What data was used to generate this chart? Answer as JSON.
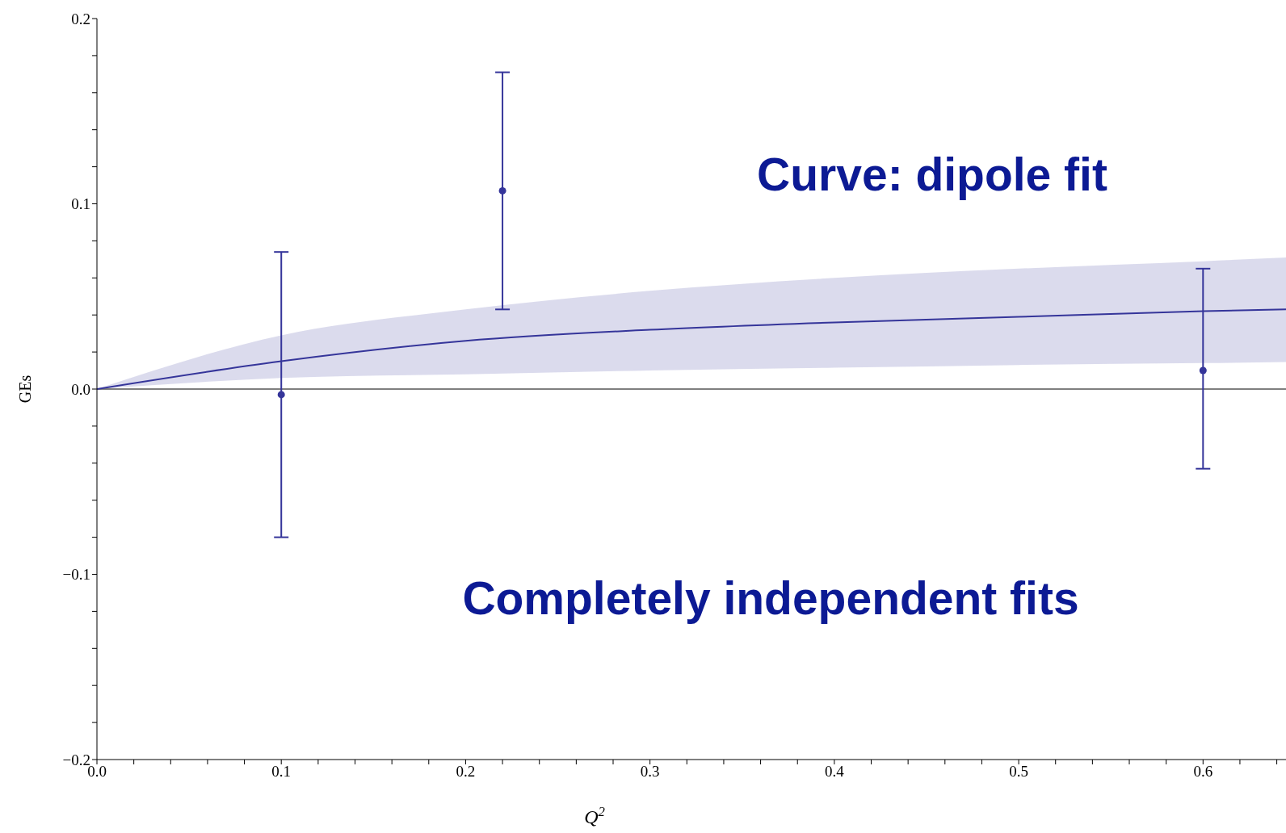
{
  "chart_data": {
    "type": "line",
    "xlabel": "Q$^{2}$",
    "ylabel": "GEs",
    "xlim": [
      0,
      0.645
    ],
    "xticks": [
      {
        "value": 0,
        "label": "0.0"
      },
      {
        "value": 0.02,
        "label": null
      },
      {
        "value": 0.04,
        "label": null
      },
      {
        "value": 0.06,
        "label": null
      },
      {
        "value": 0.08,
        "label": null
      },
      0.1,
      {
        "value": 0.12,
        "label": null
      },
      {
        "value": 0.14,
        "label": null
      },
      {
        "value": 0.16,
        "label": null
      },
      {
        "value": 0.18,
        "label": null
      },
      0.2,
      {
        "value": 0.22,
        "label": null
      },
      {
        "value": 0.24,
        "label": null
      },
      {
        "value": 0.26,
        "label": null
      },
      {
        "value": 0.28,
        "label": null
      },
      0.3,
      {
        "value": 0.32,
        "label": null
      },
      {
        "value": 0.34,
        "label": null
      },
      {
        "value": 0.36,
        "label": null
      },
      {
        "value": 0.38,
        "label": null
      },
      0.4,
      {
        "value": 0.42,
        "label": null
      },
      {
        "value": 0.44,
        "label": null
      },
      {
        "value": 0.46,
        "label": null
      },
      {
        "value": 0.48,
        "label": null
      },
      0.5,
      {
        "value": 0.52,
        "label": null
      },
      {
        "value": 0.54,
        "label": null
      },
      {
        "value": 0.56,
        "label": null
      },
      {
        "value": 0.58,
        "label": null
      },
      0.6,
      {
        "value": 0.62,
        "label": null
      },
      {
        "value": 0.64,
        "label": null
      }
    ],
    "ylim": [
      -0.2,
      0.2
    ],
    "yticks": [
      {
        "value": -0.2,
        "label": "−0.2"
      },
      {
        "value": -0.18,
        "label": null
      },
      {
        "value": -0.16,
        "label": null
      },
      {
        "value": -0.14,
        "label": null
      },
      {
        "value": -0.12,
        "label": null
      },
      {
        "value": -0.1,
        "label": "−0.1"
      },
      {
        "value": -0.08,
        "label": null
      },
      {
        "value": -0.06,
        "label": null
      },
      {
        "value": -0.04,
        "label": null
      },
      {
        "value": -0.02,
        "label": null
      },
      {
        "value": 0,
        "label": "0.0"
      },
      {
        "value": 0.02,
        "label": null
      },
      {
        "value": 0.04,
        "label": null
      },
      {
        "value": 0.06,
        "label": null
      },
      {
        "value": 0.08,
        "label": null
      },
      0.1,
      {
        "value": 0.12,
        "label": null
      },
      {
        "value": 0.14,
        "label": null
      },
      {
        "value": 0.16,
        "label": null
      },
      {
        "value": 0.18,
        "label": null
      },
      0.2
    ],
    "series": [
      {
        "color": "#35359a",
        "marker": "none",
        "line_style": "solid",
        "x": [
          0,
          0.1,
          0.2,
          0.3,
          0.4,
          0.5,
          0.6,
          0.645
        ],
        "values": [
          0,
          0.015,
          0.026,
          0.032,
          0.036,
          0.039,
          0.042,
          0.043
        ],
        "lower": [
          0,
          0.006,
          0.008,
          0.01,
          0.0115,
          0.013,
          0.014,
          0.0146
        ],
        "upper": [
          0,
          0.029,
          0.043,
          0.053,
          0.06,
          0.065,
          0.069,
          0.071
        ]
      },
      {
        "type": "scatter",
        "color": "#35359a",
        "marker": "circle",
        "x": [
          0.1,
          0.22,
          0.6
        ],
        "values": [
          -0.003,
          0.107,
          0.01
        ],
        "errors": [
          [
            -0.08,
            0.074
          ],
          [
            0.043,
            0.171
          ],
          [
            -0.043,
            0.065
          ]
        ]
      }
    ],
    "ref_lines": [
      {
        "axis": "y",
        "value": 0,
        "color": "#555555"
      }
    ],
    "annotations": [
      "Curve: dipole fit",
      "Completely independent fits"
    ]
  }
}
